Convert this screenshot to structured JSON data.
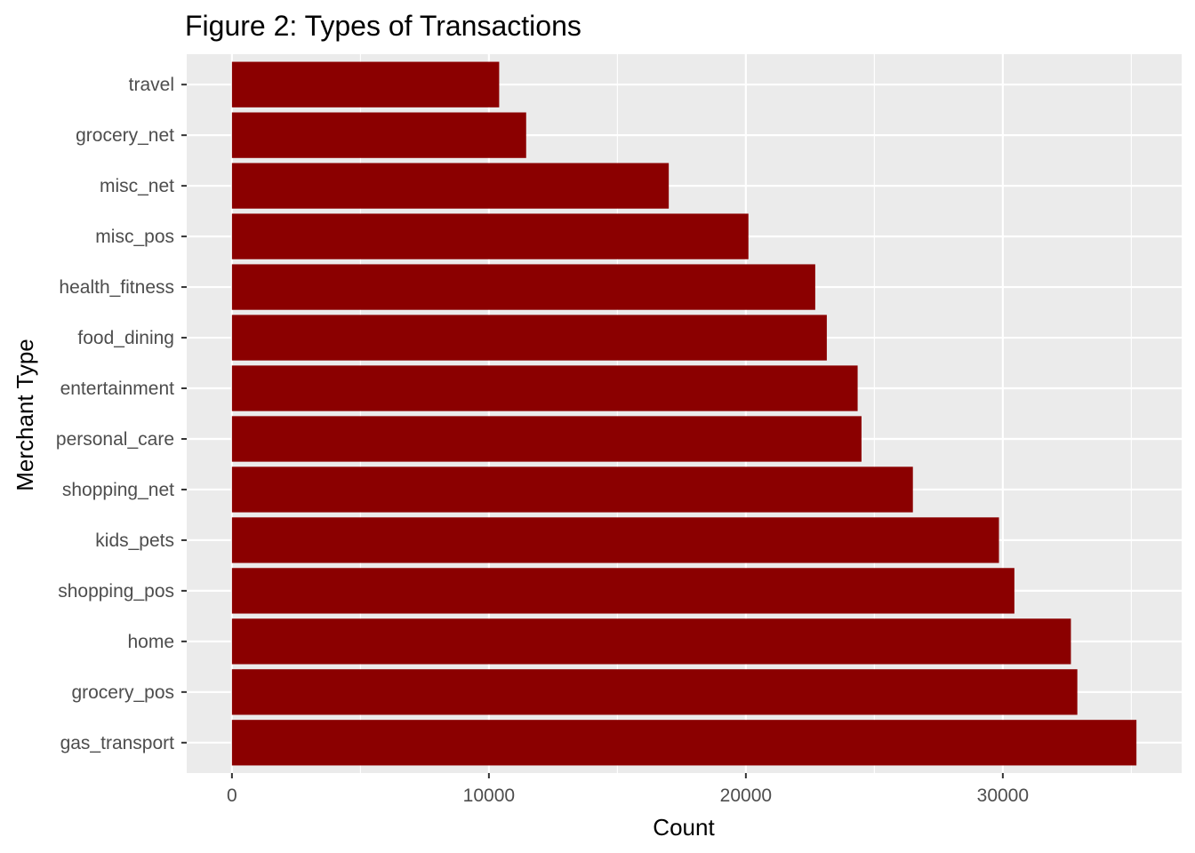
{
  "chart_data": {
    "type": "bar",
    "orientation": "horizontal",
    "title": "Figure 2: Types of Transactions",
    "xlabel": "Count",
    "ylabel": "Merchant Type",
    "categories": [
      "travel",
      "grocery_net",
      "misc_net",
      "misc_pos",
      "health_fitness",
      "food_dining",
      "entertainment",
      "personal_care",
      "shopping_net",
      "kids_pets",
      "shopping_pos",
      "home",
      "grocery_pos",
      "gas_transport"
    ],
    "values": [
      10400,
      11450,
      17000,
      20100,
      22700,
      23150,
      24350,
      24500,
      26500,
      29850,
      30450,
      32650,
      32900,
      35200
    ],
    "xlim": [
      -1760,
      36960
    ],
    "xticks": [
      0,
      10000,
      20000,
      30000
    ],
    "xtick_labels": [
      "0",
      "10000",
      "20000",
      "30000"
    ],
    "grid": true,
    "legend": "none",
    "colors": {
      "bar": "#8B0000",
      "panel_background": "#EBEBEB",
      "grid": "#FFFFFF",
      "tick_text": "#4D4D4D",
      "tick_mark": "#333333"
    }
  }
}
